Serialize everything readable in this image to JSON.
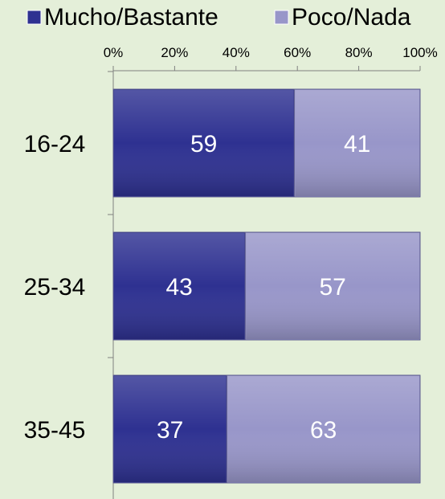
{
  "chart_data": {
    "type": "bar",
    "orientation": "horizontal",
    "stacked": true,
    "percent_stacked": true,
    "categories": [
      "16-24",
      "25-34",
      "35-45"
    ],
    "series": [
      {
        "name": "Mucho/Bastante",
        "values": [
          59,
          43,
          37
        ],
        "color": "#2e3191"
      },
      {
        "name": "Poco/Nada",
        "values": [
          41,
          57,
          63
        ],
        "color": "#9896c9"
      }
    ],
    "xlim": [
      0,
      100
    ],
    "xticks": [
      "0%",
      "20%",
      "40%",
      "60%",
      "80%",
      "100%"
    ],
    "axis_position": "top",
    "legend_position": "top",
    "grid": false,
    "background": "#e4efd9",
    "axis_color": "#808080",
    "label_color": "#ffffff"
  }
}
